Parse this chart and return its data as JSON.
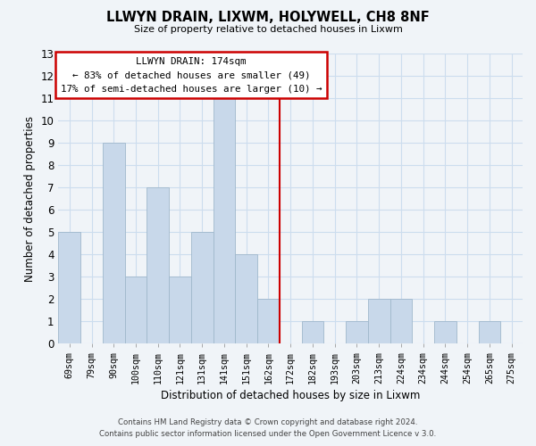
{
  "title": "LLWYN DRAIN, LIXWM, HOLYWELL, CH8 8NF",
  "subtitle": "Size of property relative to detached houses in Lixwm",
  "xlabel": "Distribution of detached houses by size in Lixwm",
  "ylabel": "Number of detached properties",
  "footer_line1": "Contains HM Land Registry data © Crown copyright and database right 2024.",
  "footer_line2": "Contains public sector information licensed under the Open Government Licence v 3.0.",
  "bar_labels": [
    "69sqm",
    "79sqm",
    "90sqm",
    "100sqm",
    "110sqm",
    "121sqm",
    "131sqm",
    "141sqm",
    "151sqm",
    "162sqm",
    "172sqm",
    "182sqm",
    "193sqm",
    "203sqm",
    "213sqm",
    "224sqm",
    "234sqm",
    "244sqm",
    "254sqm",
    "265sqm",
    "275sqm"
  ],
  "bar_values": [
    5,
    0,
    9,
    3,
    7,
    3,
    5,
    11,
    4,
    2,
    0,
    1,
    0,
    1,
    2,
    2,
    0,
    1,
    0,
    1,
    0
  ],
  "bar_color": "#c8d8ea",
  "bar_edge_color": "#a0b8cc",
  "ylim": [
    0,
    13
  ],
  "yticks": [
    0,
    1,
    2,
    3,
    4,
    5,
    6,
    7,
    8,
    9,
    10,
    11,
    12,
    13
  ],
  "property_line_index": 10,
  "property_line_color": "#cc0000",
  "annotation_title": "LLWYN DRAIN: 174sqm",
  "annotation_line1": "← 83% of detached houses are smaller (49)",
  "annotation_line2": "17% of semi-detached houses are larger (10) →",
  "grid_color": "#ccddee",
  "background_color": "#f0f4f8"
}
